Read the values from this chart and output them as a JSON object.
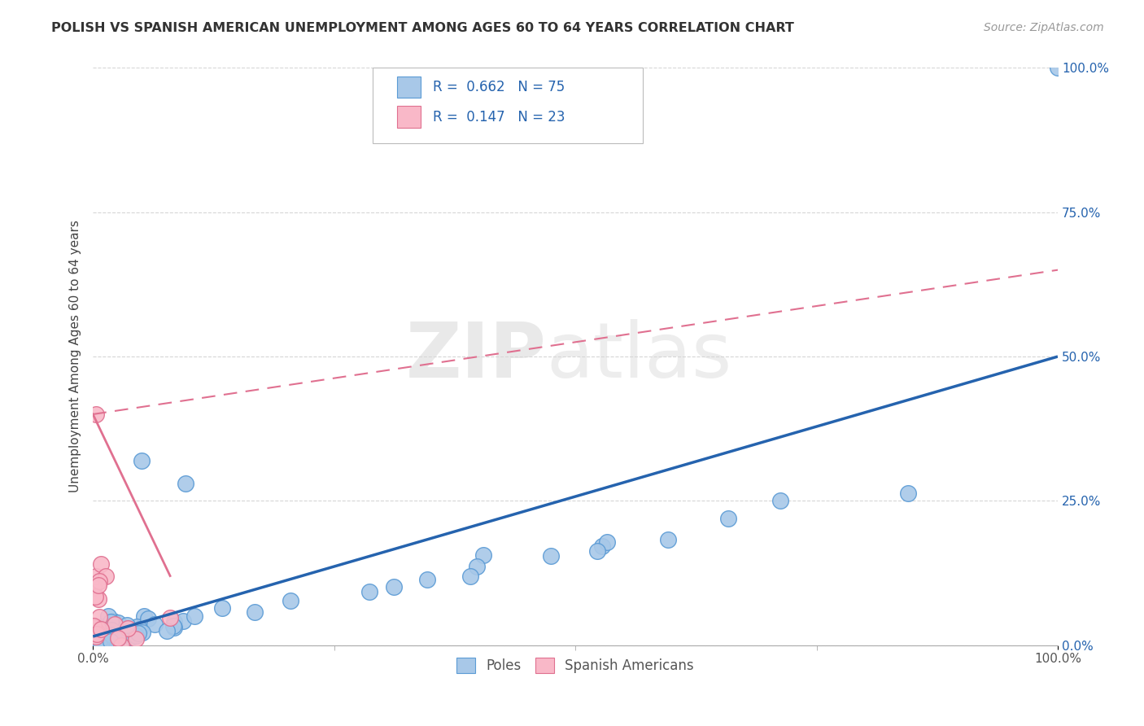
{
  "title": "POLISH VS SPANISH AMERICAN UNEMPLOYMENT AMONG AGES 60 TO 64 YEARS CORRELATION CHART",
  "source": "Source: ZipAtlas.com",
  "ylabel": "Unemployment Among Ages 60 to 64 years",
  "xlim": [
    0,
    100
  ],
  "ylim": [
    0,
    100
  ],
  "yticks": [
    0,
    25,
    50,
    75,
    100
  ],
  "ytick_labels_right": [
    "0.0%",
    "25.0%",
    "50.0%",
    "75.0%",
    "100.0%"
  ],
  "poles_color": "#a8c8e8",
  "poles_edge_color": "#5b9bd5",
  "spanish_color": "#f9b8c8",
  "spanish_edge_color": "#e07090",
  "regression_poles_color": "#2563ae",
  "regression_spanish_color": "#e07090",
  "regression_text_color": "#2563ae",
  "legend_R_poles": "0.662",
  "legend_N_poles": "75",
  "legend_R_spanish": "0.147",
  "legend_N_spanish": "23",
  "legend_label_poles": "Poles",
  "legend_label_spanish": "Spanish Americans",
  "watermark_zip": "ZIP",
  "watermark_atlas": "atlas",
  "background_color": "#ffffff",
  "grid_color": "#cccccc",
  "poles_regression_x0": 0,
  "poles_regression_y0": 1.5,
  "poles_regression_x1": 100,
  "poles_regression_y1": 50,
  "spanish_regression_x0": 0,
  "spanish_regression_y0": 40,
  "spanish_regression_x1": 100,
  "spanish_regression_y1": 65,
  "title_fontsize": 11.5,
  "source_fontsize": 10,
  "tick_fontsize": 11,
  "legend_fontsize": 12
}
